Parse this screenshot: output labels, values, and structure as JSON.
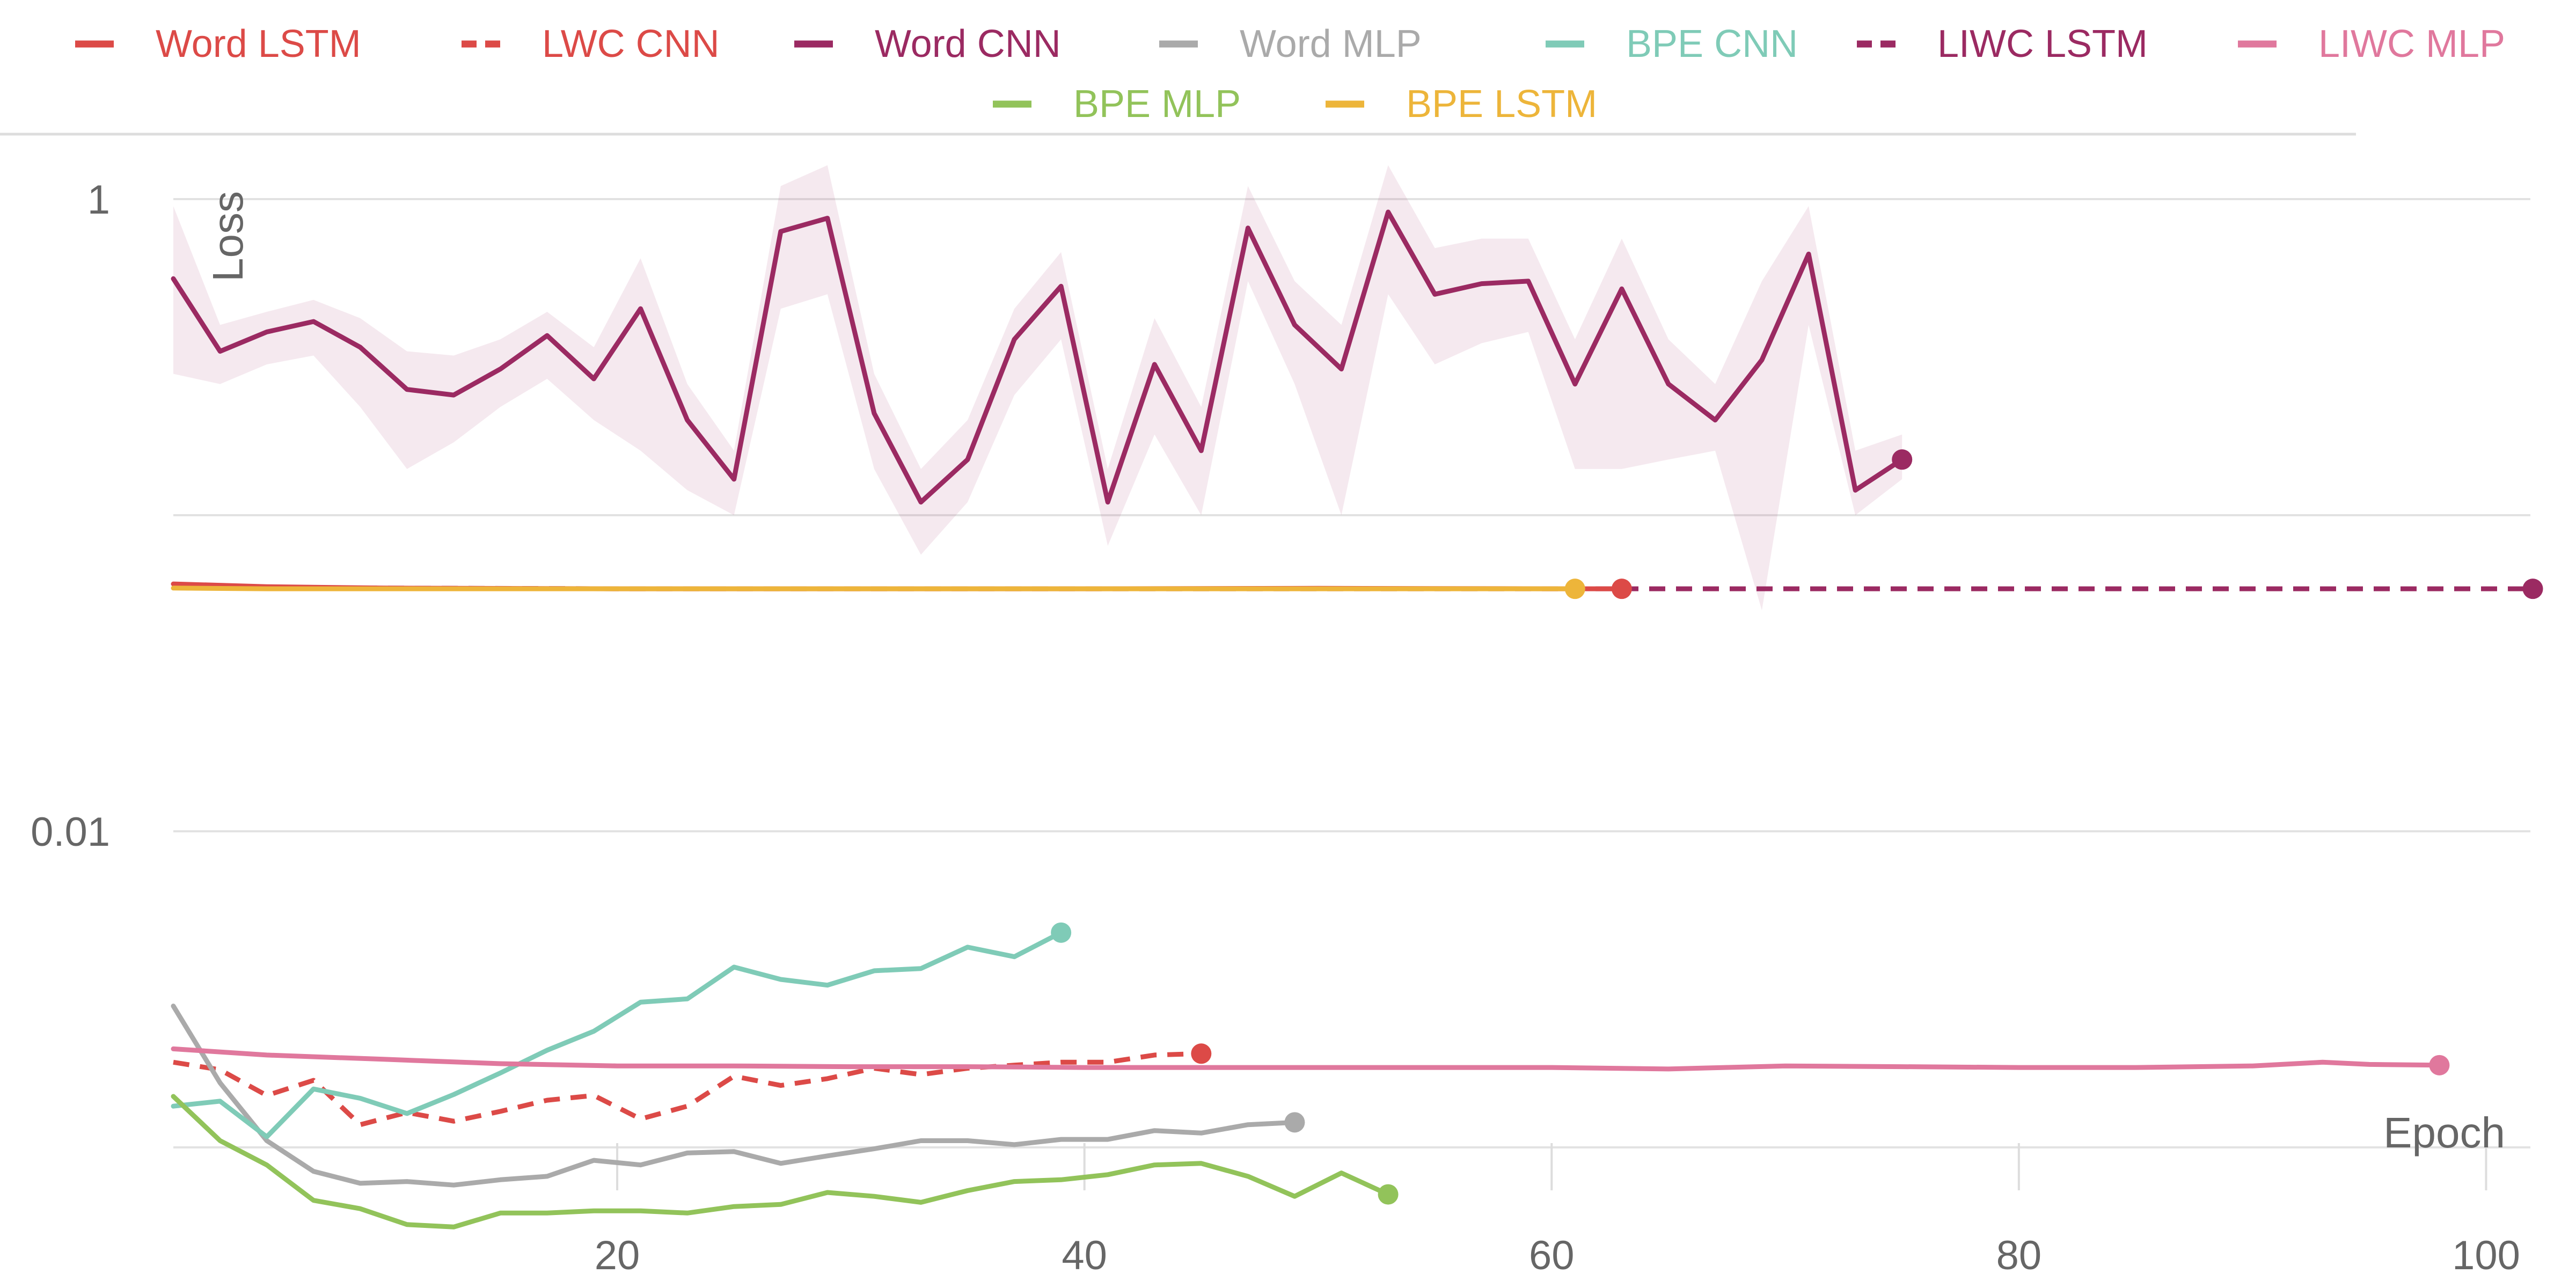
{
  "chart_data": {
    "type": "line",
    "xlabel": "Epoch",
    "ylabel": "Loss",
    "y_scale": "log",
    "xlim": [
      0,
      102
    ],
    "ylim": [
      0.0004,
      1.5
    ],
    "x_ticks": [
      20,
      40,
      60,
      80,
      100
    ],
    "x_tick_labels": [
      "20",
      "40",
      "60",
      "80",
      "100"
    ],
    "y_ticks": [
      1,
      0.1,
      0.01,
      0.001
    ],
    "y_tick_labels": [
      "1",
      "",
      "0.01",
      ""
    ],
    "grid": true,
    "legend_position": "top",
    "series": [
      {
        "name": "Word LSTM",
        "color": "#dc4a47",
        "dash": "solid",
        "x": [
          1,
          5,
          10,
          20,
          30,
          40,
          50,
          60,
          63
        ],
        "y": [
          0.0606,
          0.0594,
          0.0588,
          0.0585,
          0.0585,
          0.0585,
          0.0587,
          0.0585,
          0.0585
        ]
      },
      {
        "name": "LWC CNN",
        "color": "#dc4a47",
        "dash": "dashed",
        "x": [
          1,
          3,
          5,
          7,
          9,
          11,
          13,
          15,
          17,
          19,
          21,
          23,
          25,
          27,
          29,
          31,
          33,
          35,
          37,
          39,
          41,
          43,
          45
        ],
        "y": [
          0.00186,
          0.00176,
          0.00146,
          0.00163,
          0.00118,
          0.00129,
          0.00121,
          0.0013,
          0.00141,
          0.00146,
          0.00123,
          0.00135,
          0.00168,
          0.00157,
          0.00165,
          0.00178,
          0.0017,
          0.00178,
          0.00182,
          0.00186,
          0.00186,
          0.00196,
          0.00198
        ]
      },
      {
        "name": "Word CNN",
        "color": "#9b2a62",
        "dash": "solid",
        "x": [
          1,
          3,
          5,
          7,
          9,
          11,
          13,
          15,
          17,
          19,
          21,
          23,
          25,
          27,
          29,
          31,
          33,
          35,
          37,
          39,
          41,
          43,
          45,
          47,
          49,
          51,
          53,
          55,
          57,
          59,
          61,
          63,
          65,
          67,
          69,
          71,
          73,
          75
        ],
        "y": [
          0.56,
          0.33,
          0.38,
          0.41,
          0.34,
          0.25,
          0.24,
          0.29,
          0.37,
          0.27,
          0.45,
          0.2,
          0.13,
          0.79,
          0.87,
          0.21,
          0.11,
          0.15,
          0.36,
          0.53,
          0.11,
          0.3,
          0.16,
          0.81,
          0.4,
          0.29,
          0.91,
          0.5,
          0.54,
          0.55,
          0.26,
          0.52,
          0.26,
          0.2,
          0.31,
          0.67,
          0.12,
          0.15
        ],
        "band_upper": [
          0.95,
          0.4,
          0.44,
          0.48,
          0.42,
          0.33,
          0.32,
          0.36,
          0.44,
          0.34,
          0.65,
          0.26,
          0.16,
          1.1,
          1.28,
          0.28,
          0.14,
          0.2,
          0.45,
          0.68,
          0.14,
          0.42,
          0.22,
          1.1,
          0.55,
          0.4,
          1.28,
          0.7,
          0.75,
          0.75,
          0.36,
          0.75,
          0.36,
          0.26,
          0.55,
          0.95,
          0.16,
          0.18
        ],
        "band_lower": [
          0.28,
          0.26,
          0.3,
          0.32,
          0.22,
          0.14,
          0.17,
          0.22,
          0.27,
          0.2,
          0.16,
          0.12,
          0.1,
          0.45,
          0.5,
          0.14,
          0.075,
          0.11,
          0.24,
          0.36,
          0.08,
          0.18,
          0.1,
          0.55,
          0.26,
          0.1,
          0.5,
          0.3,
          0.35,
          0.38,
          0.14,
          0.14,
          0.15,
          0.16,
          0.05,
          0.4,
          0.1,
          0.13
        ]
      },
      {
        "name": "Word MLP",
        "color": "#aaaaaa",
        "dash": "solid",
        "x": [
          1,
          3,
          5,
          7,
          9,
          11,
          13,
          15,
          17,
          19,
          21,
          23,
          25,
          27,
          29,
          31,
          33,
          35,
          37,
          39,
          41,
          43,
          45,
          47,
          49
        ],
        "y": [
          0.0028,
          0.0016,
          0.00105,
          0.00084,
          0.00077,
          0.00078,
          0.00076,
          0.00079,
          0.00081,
          0.00091,
          0.00088,
          0.00096,
          0.00097,
          0.00089,
          0.00094,
          0.00099,
          0.00105,
          0.00105,
          0.00102,
          0.00106,
          0.00106,
          0.00113,
          0.00111,
          0.00118,
          0.0012
        ]
      },
      {
        "name": "BPE CNN",
        "color": "#7fcbb7",
        "dash": "solid",
        "x": [
          1,
          3,
          5,
          7,
          9,
          11,
          13,
          15,
          17,
          19,
          21,
          23,
          25,
          27,
          29,
          31,
          33,
          35,
          37,
          39
        ],
        "y": [
          0.00135,
          0.0014,
          0.00108,
          0.00153,
          0.00143,
          0.00128,
          0.00147,
          0.00172,
          0.00203,
          0.00233,
          0.00288,
          0.00295,
          0.00372,
          0.0034,
          0.00326,
          0.00362,
          0.00368,
          0.0043,
          0.00401,
          0.00478
        ]
      },
      {
        "name": "LIWC LSTM",
        "color": "#9b2a62",
        "dash": "dashed",
        "x": [
          1,
          10,
          20,
          30,
          40,
          50,
          60,
          63,
          70,
          80,
          90,
          102
        ],
        "y": [
          0.0592,
          0.0588,
          0.0585,
          0.0585,
          0.0585,
          0.0585,
          0.0585,
          0.0585,
          0.0585,
          0.0585,
          0.0585,
          0.0585
        ]
      },
      {
        "name": "LIWC MLP",
        "color": "#e0789d",
        "dash": "solid",
        "x": [
          1,
          5,
          10,
          15,
          20,
          25,
          30,
          35,
          40,
          45,
          50,
          55,
          60,
          65,
          70,
          75,
          80,
          85,
          90,
          93,
          95,
          98
        ],
        "y": [
          0.00205,
          0.00196,
          0.0019,
          0.00184,
          0.00181,
          0.00181,
          0.0018,
          0.0018,
          0.00179,
          0.00179,
          0.00179,
          0.00179,
          0.00179,
          0.00177,
          0.00181,
          0.0018,
          0.00179,
          0.00179,
          0.00181,
          0.00186,
          0.00183,
          0.00182
        ]
      },
      {
        "name": "BPE MLP",
        "color": "#92c35a",
        "dash": "solid",
        "x": [
          1,
          3,
          5,
          7,
          9,
          11,
          13,
          15,
          17,
          19,
          21,
          23,
          25,
          27,
          29,
          31,
          33,
          35,
          37,
          39,
          41,
          43,
          45,
          47,
          49,
          51,
          53
        ],
        "y": [
          0.00145,
          0.00105,
          0.00088,
          0.00068,
          0.00064,
          0.00057,
          0.00056,
          0.00062,
          0.00062,
          0.00063,
          0.00063,
          0.00062,
          0.00065,
          0.00066,
          0.00072,
          0.0007,
          0.00067,
          0.00073,
          0.00078,
          0.00079,
          0.00082,
          0.00088,
          0.00089,
          0.00081,
          0.0007,
          0.00083,
          0.00071
        ]
      },
      {
        "name": "BPE LSTM",
        "color": "#edb53a",
        "dash": "solid",
        "x": [
          1,
          5,
          10,
          20,
          30,
          40,
          50,
          61
        ],
        "y": [
          0.0588,
          0.0585,
          0.0585,
          0.0585,
          0.0585,
          0.0585,
          0.0585,
          0.0585
        ]
      }
    ]
  }
}
